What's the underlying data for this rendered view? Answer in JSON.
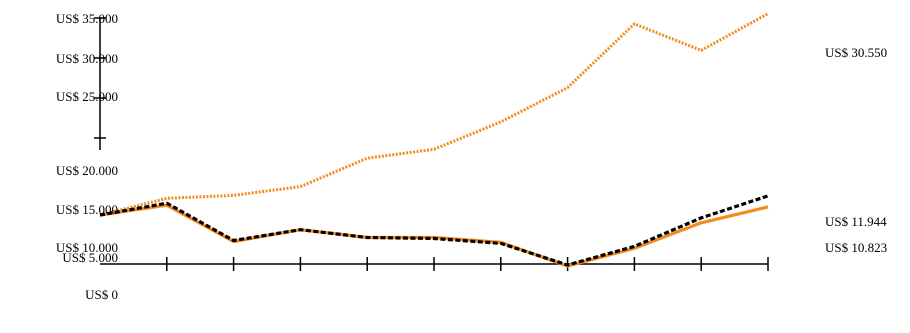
{
  "chart_data": {
    "type": "line",
    "title": "",
    "xlabel": "",
    "ylabel": "",
    "x": [
      0,
      1,
      2,
      3,
      4,
      5,
      6,
      7,
      8,
      9,
      10
    ],
    "ytick_labels": [
      "US$ 0",
      "US$ 5.000",
      "US$ 10.000",
      "US$ 15.000",
      "US$ 20.000",
      "US$ 25.000",
      "US$ 30.000",
      "US$ 35.000"
    ],
    "ytick_values": [
      0,
      5000,
      10000,
      15000,
      20000,
      25000,
      30000,
      35000
    ],
    "grid": false,
    "legend": "none",
    "series": [
      {
        "values": [
          10000,
          11700,
          12000,
          12900,
          15800,
          16700,
          19500,
          23000,
          29500,
          26800,
          30550
        ],
        "color": "#f28c1e",
        "style": "dotted",
        "end_label": "US$ 30.550"
      },
      {
        "values": [
          10000,
          11200,
          7400,
          8500,
          7700,
          7600,
          7100,
          4900,
          6800,
          9700,
          11944
        ],
        "color": "#000000",
        "style": "dashed",
        "end_label": "US$ 11.944"
      },
      {
        "values": [
          10000,
          11000,
          7300,
          8500,
          7700,
          7700,
          7200,
          4800,
          6600,
          9200,
          10823
        ],
        "color": "#f28c1e",
        "style": "solid",
        "end_label": "US$ 10.823"
      }
    ]
  }
}
